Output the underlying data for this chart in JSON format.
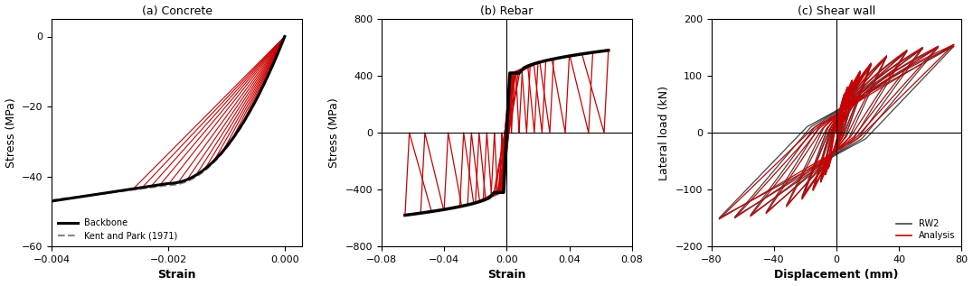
{
  "fig_width": 10.76,
  "fig_height": 3.17,
  "dpi": 100,
  "panel_a": {
    "title": "(a) Concrete",
    "xlabel": "Strain",
    "ylabel": "Stress (MPa)",
    "xlim": [
      -0.004,
      0.0003
    ],
    "ylim": [
      -60,
      5
    ],
    "xticks": [
      -0.004,
      -0.002,
      0
    ],
    "yticks": [
      -60,
      -40,
      -20,
      0
    ],
    "backbone_color": "#000000",
    "kent_park_color": "#888888",
    "red_color": "#cc0000",
    "legend_labels": [
      "Backbone",
      "Kent and Park (1971)"
    ]
  },
  "panel_b": {
    "title": "(b) Rebar",
    "xlabel": "Strain",
    "ylabel": "Stress (MPa)",
    "xlim": [
      -0.08,
      0.08
    ],
    "ylim": [
      -800,
      800
    ],
    "xticks": [
      -0.08,
      -0.04,
      0,
      0.04,
      0.08
    ],
    "yticks": [
      -800,
      -400,
      0,
      400,
      800
    ],
    "backbone_color": "#000000",
    "red_color": "#cc0000"
  },
  "panel_c": {
    "title": "(c) Shear wall",
    "xlabel": "Displacement (mm)",
    "ylabel": "Lateral load (kN)",
    "xlim": [
      -80,
      80
    ],
    "ylim": [
      -200,
      200
    ],
    "xticks": [
      -80,
      -40,
      0,
      40,
      80
    ],
    "yticks": [
      -200,
      -100,
      0,
      100,
      200
    ],
    "black_color": "#444444",
    "red_color": "#cc0000",
    "legend_labels": [
      "RW2",
      "Analysis"
    ]
  }
}
